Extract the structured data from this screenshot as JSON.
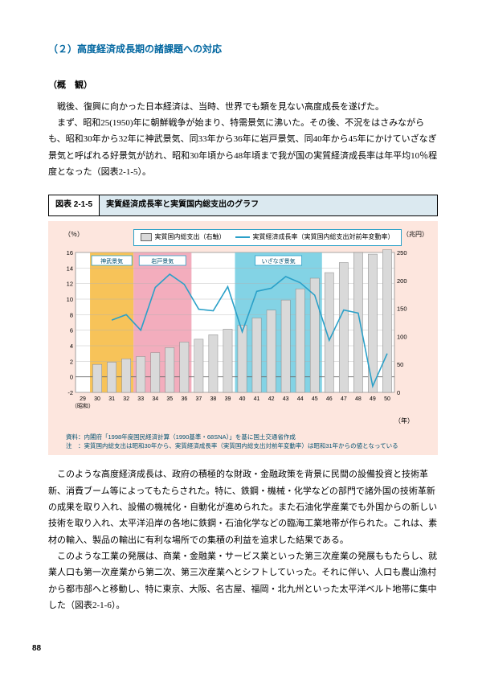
{
  "section_title": "（２）高度経済成長期の諸課題への対応",
  "subsection": {
    "title": "（概　観）",
    "para1": "戦後、復興に向かった日本経済は、当時、世界でも類を見ない高度成長を遂げた。",
    "para2": "まず、昭和25(1950)年に朝鮮戦争が始まり、特需景気に沸いた。その後、不況をはさみながらも、昭和30年から32年に神武景気、同33年から36年に岩戸景気、同40年から45年にかけていざなぎ景気と呼ばれる好景気が訪れ、昭和30年頃から48年頃まで我が国の実質経済成長率は年平均10％程度となった（図表2-1-5）。"
  },
  "figure": {
    "number": "図表 2-1-5",
    "title": "実質経済成長率と実質国内総支出のグラフ",
    "legend": {
      "bar": "実質国内総支出（右軸）",
      "line": "実質経済成長率（実質国内総支出対前年変動率）"
    },
    "y_left": {
      "unit": "（％）",
      "min": -2,
      "max": 16,
      "step": 2
    },
    "y_right": {
      "unit": "（兆円）",
      "min": 0,
      "max": 250,
      "step": 50
    },
    "x": {
      "label": "（年）",
      "start_label": "（昭和）"
    },
    "panel_bg": "#fde6de",
    "plot_bg": "#ffffff",
    "grid_color": "#b0b0b0",
    "bar_color": "#d9d9d9",
    "bar_stroke": "#888888",
    "line_color": "#2aa0c8",
    "highlight_jinmu": {
      "label": "神武景気",
      "color": "#f6b83c",
      "start": 30,
      "end": 32
    },
    "highlight_iwato": {
      "label": "岩戸景気",
      "color": "#f19fb2",
      "start": 33,
      "end": 36
    },
    "highlight_izanagi": {
      "label": "いざなぎ景気",
      "color": "#6dcbe0",
      "start": 40,
      "end": 45
    },
    "years": [
      29,
      30,
      31,
      32,
      33,
      34,
      35,
      36,
      37,
      38,
      39,
      40,
      41,
      42,
      43,
      44,
      45,
      46,
      47,
      48,
      49,
      50
    ],
    "bars": [
      null,
      50,
      54,
      60,
      64,
      71,
      80,
      90,
      95,
      103,
      113,
      120,
      133,
      147,
      165,
      185,
      204,
      214,
      232,
      250,
      247,
      255
    ],
    "line_vals": [
      null,
      null,
      7.3,
      8.0,
      6.0,
      11.5,
      13.2,
      11.9,
      8.7,
      8.5,
      11.6,
      5.8,
      11.0,
      11.4,
      12.9,
      12.1,
      10.5,
      4.7,
      8.6,
      8.2,
      -1.2,
      3.0
    ],
    "notes_source": "資料：内閣府「1998年度国民経済計算（1990基準・68SNA）」を基に国土交通省作成",
    "notes_note": "注　：実質国内総支出は昭和30年から、実質経済成長率（実質国内総支出対前年変動率）は昭和31年からの値となっている"
  },
  "body": {
    "para3": "このような高度経済成長は、政府の積極的な財政・金融政策を背景に民間の設備投資と技術革新、消費ブーム等によってもたらされた。特に、鉄鋼・機械・化学などの部門で諸外国の技術革新の成果を取り入れ、設備の機械化・自動化が進められた。また石油化学産業でも外国からの新しい技術を取り入れ、太平洋沿岸の各地に鉄鋼・石油化学などの臨海工業地帯が作られた。これは、素材の輸入、製品の輸出に有利な場所での集積の利益を追求した結果である。",
    "para4": "このような工業の発展は、商業・金融業・サービス業といった第三次産業の発展ももたらし、就業人口も第一次産業から第二次、第三次産業へとシフトしていった。それに伴い、人口も農山漁村から都市部へと移動し、特に東京、大阪、名古屋、福岡・北九州といった太平洋ベルト地帯に集中した（図表2-1-6）。"
  },
  "page_number": "88"
}
